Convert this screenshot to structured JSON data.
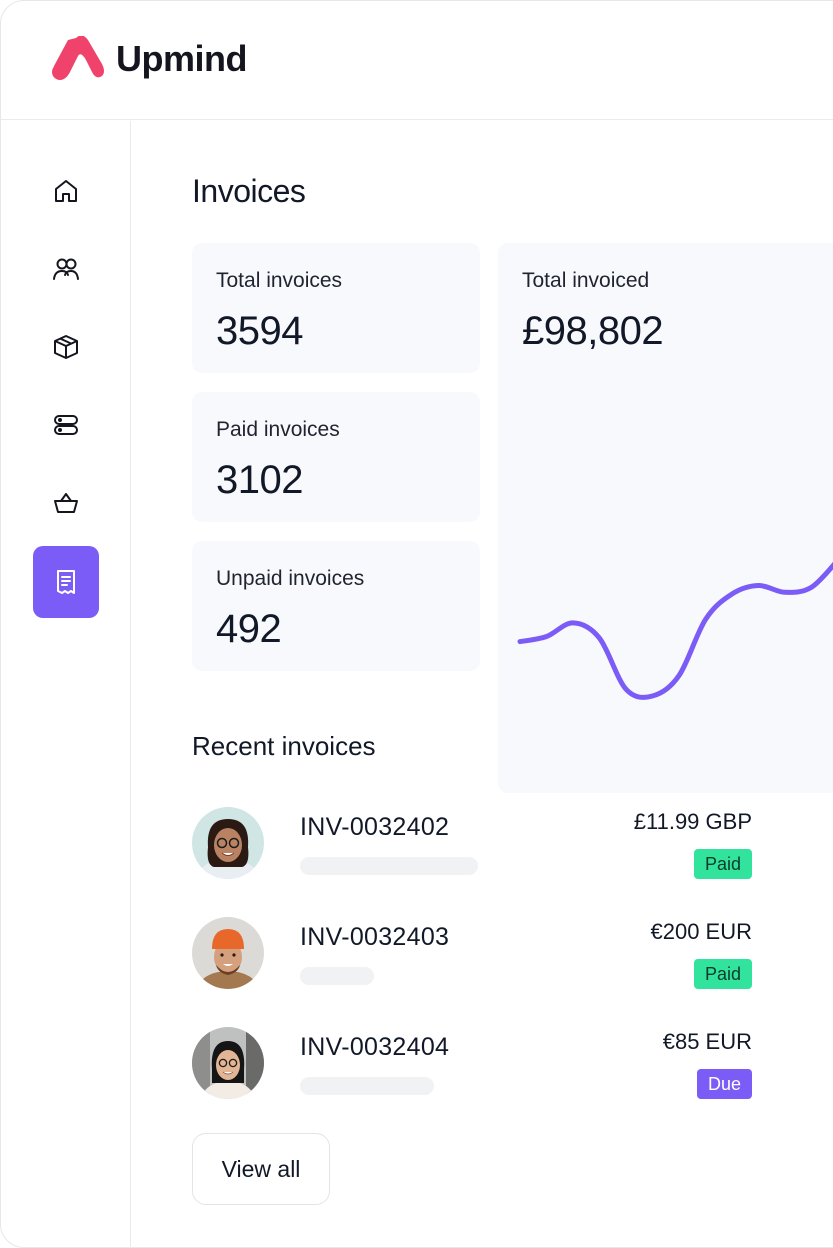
{
  "app": {
    "name": "Upmind",
    "accent": "#7c5cf6",
    "brand_color": "#f0436b"
  },
  "sidebar": {
    "items": [
      {
        "icon": "home-icon",
        "active": false
      },
      {
        "icon": "users-icon",
        "active": false
      },
      {
        "icon": "box-icon",
        "active": false
      },
      {
        "icon": "server-icon",
        "active": false
      },
      {
        "icon": "basket-icon",
        "active": false
      },
      {
        "icon": "receipt-icon",
        "active": true
      }
    ]
  },
  "page": {
    "title": "Invoices"
  },
  "stats": {
    "total": {
      "label": "Total invoices",
      "value": "3594"
    },
    "paid": {
      "label": "Paid invoices",
      "value": "3102"
    },
    "unpaid": {
      "label": "Unpaid invoices",
      "value": "492"
    },
    "invoiced": {
      "label": "Total invoiced",
      "value": "£98,802"
    }
  },
  "chart_data": {
    "type": "line",
    "title": "Total invoiced",
    "xlabel": "",
    "ylabel": "",
    "grid": false,
    "series": [
      {
        "values": [
          42,
          45,
          53,
          44,
          14,
          10,
          22,
          55,
          70,
          75,
          71,
          74,
          90
        ]
      }
    ],
    "ylim": [
      0,
      100
    ],
    "color": "#7c5cf6"
  },
  "recent": {
    "title": "Recent invoices",
    "invoices": [
      {
        "id": "INV-0032402",
        "amount": "£11.99 GBP",
        "status": "Paid",
        "status_type": "paid"
      },
      {
        "id": "INV-0032403",
        "amount": "€200 EUR",
        "status": "Paid",
        "status_type": "paid"
      },
      {
        "id": "INV-0032404",
        "amount": "€85 EUR",
        "status": "Due",
        "status_type": "due"
      }
    ],
    "view_all_label": "View all"
  }
}
